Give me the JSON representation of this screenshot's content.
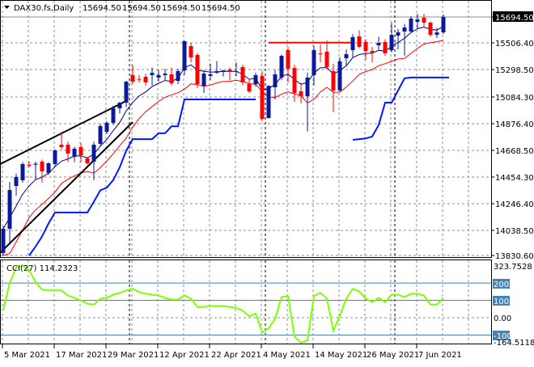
{
  "header": {
    "symbol": "DAX30.fs,Daily",
    "ohlc": [
      "15694.50",
      "15694.50",
      "15694.50",
      "15694.50"
    ],
    "dropdown_icon": "triangle-down-icon"
  },
  "colors": {
    "bull": "#0a1a9a",
    "bear": "#ff0000",
    "fast_ma": "#000080",
    "slow_ma": "#ff0000",
    "step_line": "#0018ff",
    "cci": "#7fff00",
    "level_lines": "#4682b4",
    "resistance": "#ff0000",
    "trendline": "#000000"
  },
  "chart_data": [
    {
      "type": "candlestick",
      "title": "DAX30.fs,Daily",
      "price_axis_ticks": [
        "15694.50",
        "15506.40",
        "15298.50",
        "15084.30",
        "14876.40",
        "14668.50",
        "14454.30",
        "14246.40",
        "14038.50",
        "13830.60"
      ],
      "current_price": "15694.50",
      "ylim": [
        13830.6,
        15694.5
      ],
      "grid": true,
      "date_ticks": [
        "5 Mar 2021",
        "17 Mar 2021",
        "29 Mar 2021",
        "12 Apr 2021",
        "22 Apr 2021",
        "4 May 2021",
        "14 May 2021",
        "26 May 2021",
        "7 Jun 2021"
      ],
      "ohlc": [
        [
          13850,
          14060,
          13830,
          14039
        ],
        [
          14039,
          14405,
          13913,
          14342
        ],
        [
          14374,
          14470,
          14298,
          14444
        ],
        [
          14418,
          14560,
          14400,
          14545
        ],
        [
          14540,
          14565,
          14520,
          14532
        ],
        [
          14540,
          14564,
          14425,
          14548
        ],
        [
          14564,
          14580,
          14400,
          14488
        ],
        [
          14475,
          14560,
          14460,
          14551
        ],
        [
          14545,
          14660,
          14530,
          14652
        ],
        [
          14696,
          14797,
          14660,
          14677
        ],
        [
          14696,
          14720,
          14560,
          14627
        ],
        [
          14601,
          14680,
          14560,
          14665
        ],
        [
          14677,
          14710,
          14560,
          14614
        ],
        [
          14589,
          14600,
          14540,
          14551
        ],
        [
          14564,
          14720,
          14418,
          14696
        ],
        [
          14703,
          14860,
          14690,
          14842
        ],
        [
          14797,
          14880,
          14780,
          14867
        ],
        [
          14867,
          15000,
          14850,
          14981
        ],
        [
          14981,
          15030,
          14940,
          15025
        ],
        [
          15025,
          15195,
          14990,
          15189
        ],
        [
          15240,
          15320,
          15170,
          15189
        ],
        [
          15210,
          15240,
          15180,
          15208
        ],
        [
          15227,
          15250,
          15160,
          15183
        ],
        [
          15240,
          15300,
          15160,
          15258
        ],
        [
          15221,
          15280,
          15190,
          15240
        ],
        [
          15240,
          15290,
          15200,
          15252
        ],
        [
          15246,
          15300,
          15160,
          15176
        ],
        [
          15195,
          15290,
          15170,
          15271
        ],
        [
          15277,
          15510,
          15240,
          15505
        ],
        [
          15467,
          15490,
          15340,
          15379
        ],
        [
          15398,
          15410,
          15140,
          15170
        ],
        [
          15157,
          15280,
          15100,
          15252
        ],
        [
          15233,
          15330,
          15200,
          15246
        ],
        [
          15258,
          15350,
          15250,
          15271
        ],
        [
          15265,
          15280,
          15230,
          15277
        ],
        [
          15284,
          15300,
          15200,
          15271
        ],
        [
          15265,
          15340,
          15230,
          15271
        ],
        [
          15303,
          15320,
          15160,
          15183
        ],
        [
          15170,
          15210,
          15100,
          15113
        ],
        [
          15170,
          15260,
          15150,
          15240
        ],
        [
          15233,
          15270,
          14880,
          14898
        ],
        [
          14905,
          15160,
          14900,
          15157
        ],
        [
          15145,
          15280,
          15050,
          15246
        ],
        [
          15221,
          15400,
          15200,
          15391
        ],
        [
          15435,
          15460,
          15180,
          15290
        ],
        [
          15296,
          15320,
          15030,
          15101
        ],
        [
          15113,
          15180,
          15020,
          15075
        ],
        [
          15075,
          15260,
          14800,
          15221
        ],
        [
          15240,
          15470,
          15160,
          15435
        ],
        [
          15410,
          15480,
          15340,
          15404
        ],
        [
          15423,
          15510,
          15290,
          15303
        ],
        [
          15271,
          15330,
          14950,
          15120
        ],
        [
          15120,
          15380,
          15110,
          15347
        ],
        [
          15372,
          15440,
          15310,
          15404
        ],
        [
          15435,
          15560,
          15380,
          15537
        ],
        [
          15543,
          15590,
          15450,
          15461
        ],
        [
          15499,
          15520,
          15360,
          15429
        ],
        [
          15429,
          15460,
          15340,
          15416
        ],
        [
          15473,
          15540,
          15440,
          15492
        ],
        [
          15499,
          15520,
          15390,
          15410
        ],
        [
          15435,
          15650,
          15420,
          15555
        ],
        [
          15549,
          15600,
          15440,
          15574
        ],
        [
          15581,
          15640,
          15390,
          15612
        ],
        [
          15581,
          15700,
          15570,
          15682
        ],
        [
          15657,
          15720,
          15600,
          15676
        ],
        [
          15688,
          15720,
          15620,
          15650
        ],
        [
          15650,
          15660,
          15540,
          15555
        ],
        [
          15555,
          15610,
          15530,
          15574
        ],
        [
          15574,
          15715,
          15560,
          15694.5
        ]
      ],
      "step_line": [
        null,
        null,
        null,
        null,
        13830,
        13900,
        13980,
        14080,
        14166,
        14166,
        14166,
        14166,
        14166,
        14166,
        14250,
        14340,
        14360,
        14420,
        14520,
        14650,
        14740,
        14740,
        14740,
        14740,
        14785,
        14785,
        14840,
        14840,
        15050,
        15050,
        15050,
        15050,
        15050,
        15050,
        15050,
        15050,
        15050,
        15050,
        15050,
        15050,
        null,
        null,
        null,
        null,
        null,
        null,
        null,
        null,
        null,
        null,
        null,
        null,
        null,
        null,
        14734,
        14740,
        14745,
        14760,
        14850,
        15025,
        15025,
        15120,
        15215,
        15221,
        15221,
        15221,
        15221,
        15221,
        15221
      ],
      "resistance_line": {
        "from_index": 41,
        "to_index": 54,
        "price": 15494
      },
      "trendlines": [
        {
          "from": [
            0,
            14544
          ],
          "to": [
            19,
            15038
          ]
        },
        {
          "from": [
            0,
            13850
          ],
          "to": [
            20,
            14873
          ]
        }
      ],
      "period_separators": [
        20,
        41,
        61
      ]
    },
    {
      "type": "line",
      "title": "CCI(27) 114.2323",
      "axis_ticks": [
        "323.7528",
        "200",
        "100",
        "0.00",
        "-100",
        "-164.5118"
      ],
      "ylim": [
        -164.5118,
        323.7528
      ],
      "levels": [
        200,
        100,
        -100
      ],
      "values": [
        45,
        200,
        290,
        300,
        275,
        205,
        162,
        157,
        157,
        157,
        128,
        114,
        100,
        81,
        76,
        110,
        114,
        133,
        143,
        157,
        167,
        148,
        138,
        133,
        128,
        114,
        105,
        105,
        128,
        110,
        62,
        62,
        67,
        67,
        67,
        62,
        57,
        40,
        9,
        24,
        -85,
        -62,
        -5,
        119,
        124,
        -110,
        -145,
        -130,
        124,
        143,
        110,
        -75,
        10,
        110,
        167,
        152,
        110,
        90,
        114,
        90,
        133,
        133,
        119,
        138,
        138,
        128,
        76,
        76,
        114.2323
      ]
    }
  ]
}
